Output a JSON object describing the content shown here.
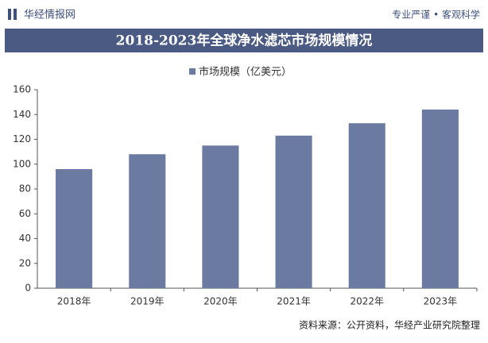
{
  "header": {
    "logo": "华经情报网",
    "slogan": "专业严谨 • 客观科学"
  },
  "chart_data": {
    "type": "bar",
    "title": "2018-2023年全球净水滤芯市场规模情况",
    "categories": [
      "2018年",
      "2019年",
      "2020年",
      "2021年",
      "2022年",
      "2023年"
    ],
    "series": [
      {
        "name": "市场规模（亿美元）",
        "color": "#6b7aa1",
        "values": [
          96,
          108,
          115,
          123,
          133,
          144
        ]
      }
    ],
    "ylim": [
      0,
      160
    ],
    "yticks": [
      0,
      20,
      40,
      60,
      80,
      100,
      120,
      140,
      160
    ],
    "legend": "top",
    "source": "资料来源：公开资料，华经产业研究院整理"
  }
}
